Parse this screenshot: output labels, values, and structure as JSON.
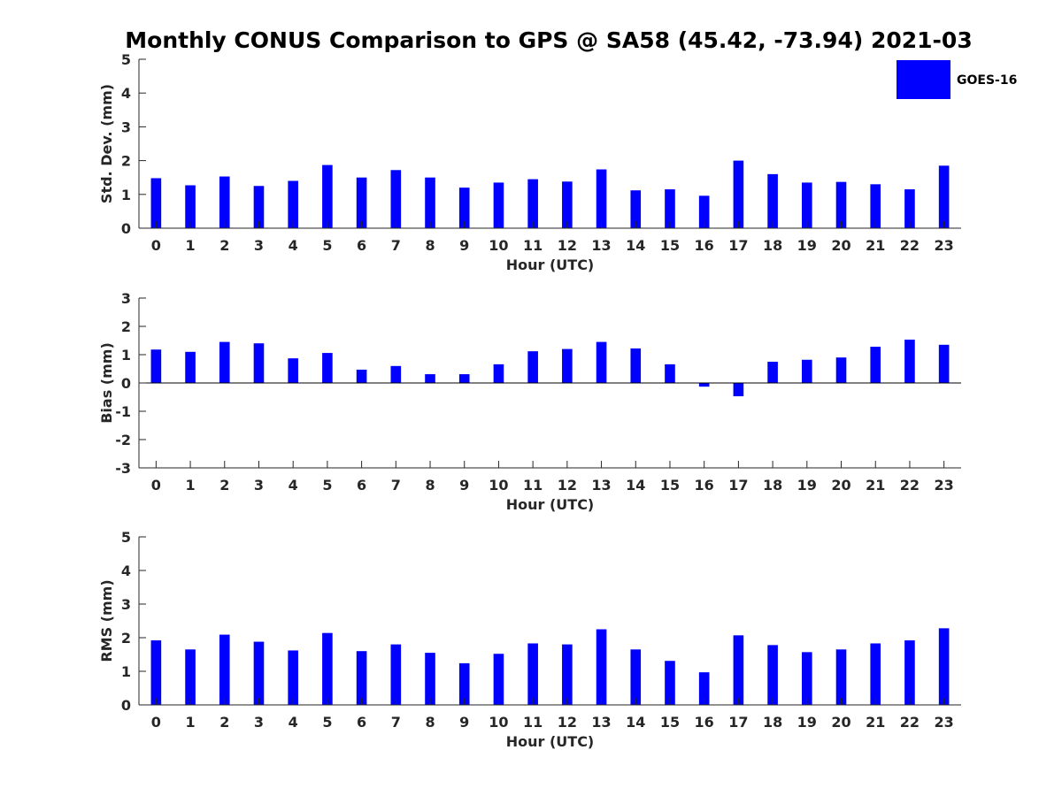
{
  "figure": {
    "title": "Monthly CONUS Comparison to GPS @ SA58 (45.42, -73.94) 2021-03",
    "legend_label": "GOES-16",
    "legend_location": "top-right",
    "bar_color": "#0000ff"
  },
  "chart_data": [
    {
      "type": "bar",
      "series_name": "GOES-16",
      "xlabel": "Hour (UTC)",
      "ylabel": "Std. Dev. (mm)",
      "categories": [
        "0",
        "1",
        "2",
        "3",
        "4",
        "5",
        "6",
        "7",
        "8",
        "9",
        "10",
        "11",
        "12",
        "13",
        "14",
        "15",
        "16",
        "17",
        "18",
        "19",
        "20",
        "21",
        "22",
        "23"
      ],
      "values": [
        1.48,
        1.27,
        1.53,
        1.25,
        1.4,
        1.87,
        1.5,
        1.72,
        1.5,
        1.2,
        1.35,
        1.45,
        1.38,
        1.74,
        1.12,
        1.15,
        0.96,
        2.0,
        1.6,
        1.35,
        1.37,
        1.3,
        1.15,
        1.85
      ],
      "ylim": [
        0,
        5
      ],
      "yticks": [
        0,
        1,
        2,
        3,
        4,
        5
      ],
      "grid": false
    },
    {
      "type": "bar",
      "series_name": "GOES-16",
      "xlabel": "Hour (UTC)",
      "ylabel": "Bias (mm)",
      "categories": [
        "0",
        "1",
        "2",
        "3",
        "4",
        "5",
        "6",
        "7",
        "8",
        "9",
        "10",
        "11",
        "12",
        "13",
        "14",
        "15",
        "16",
        "17",
        "18",
        "19",
        "20",
        "21",
        "22",
        "23"
      ],
      "values": [
        1.18,
        1.1,
        1.45,
        1.4,
        0.87,
        1.06,
        0.47,
        0.6,
        0.31,
        0.31,
        0.66,
        1.12,
        1.2,
        1.45,
        1.22,
        0.66,
        -0.13,
        -0.47,
        0.75,
        0.82,
        0.9,
        1.28,
        1.53,
        1.35
      ],
      "ylim": [
        -3,
        3
      ],
      "yticks": [
        -3,
        -2,
        -1,
        0,
        1,
        2,
        3
      ],
      "grid": false
    },
    {
      "type": "bar",
      "series_name": "GOES-16",
      "xlabel": "Hour (UTC)",
      "ylabel": "RMS (mm)",
      "categories": [
        "0",
        "1",
        "2",
        "3",
        "4",
        "5",
        "6",
        "7",
        "8",
        "9",
        "10",
        "11",
        "12",
        "13",
        "14",
        "15",
        "16",
        "17",
        "18",
        "19",
        "20",
        "21",
        "22",
        "23"
      ],
      "values": [
        1.92,
        1.65,
        2.09,
        1.88,
        1.62,
        2.14,
        1.6,
        1.8,
        1.55,
        1.24,
        1.52,
        1.83,
        1.8,
        2.25,
        1.65,
        1.31,
        0.97,
        2.07,
        1.78,
        1.57,
        1.65,
        1.83,
        1.92,
        2.28
      ],
      "ylim": [
        0,
        5
      ],
      "yticks": [
        0,
        1,
        2,
        3,
        4,
        5
      ],
      "grid": false
    }
  ]
}
